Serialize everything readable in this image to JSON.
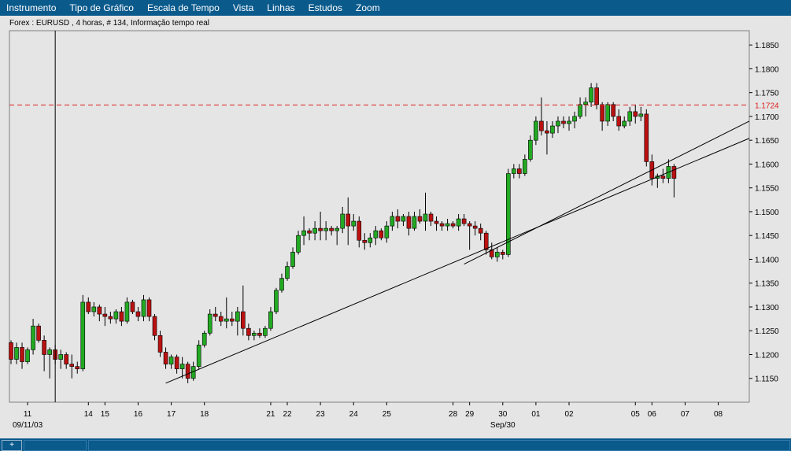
{
  "menu": {
    "items": [
      "Instrumento",
      "Tipo de Gráfico",
      "Escala de Tempo",
      "Vista",
      "Linhas",
      "Estudos",
      "Zoom"
    ]
  },
  "chart_title": "Forex : EURUSD , 4 horas, # 134, Informação tempo real",
  "statusbar": {
    "button_label": "+"
  },
  "colors": {
    "up": "#22aa22",
    "down": "#bb1111",
    "ref_line": "#dd2222",
    "background": "#e5e5e5"
  },
  "chart_data": {
    "type": "candlestick",
    "symbol": "EURUSD",
    "timeframe": "4 horas",
    "ylim": [
      1.11,
      1.188
    ],
    "y_ticks": [
      "1.1150",
      "1.1200",
      "1.1250",
      "1.1300",
      "1.1350",
      "1.1400",
      "1.1450",
      "1.1500",
      "1.1550",
      "1.1600",
      "1.1650",
      "1.1700",
      "1.1750",
      "1.1800",
      "1.1850"
    ],
    "reference_line": {
      "value": 1.1724,
      "label": "1.1724"
    },
    "x_labels": [
      {
        "label": "11",
        "index": 3
      },
      {
        "label": "14",
        "index": 14
      },
      {
        "label": "15",
        "index": 17
      },
      {
        "label": "16",
        "index": 23
      },
      {
        "label": "17",
        "index": 29
      },
      {
        "label": "18",
        "index": 35
      },
      {
        "label": "21",
        "index": 47
      },
      {
        "label": "22",
        "index": 50
      },
      {
        "label": "23",
        "index": 56
      },
      {
        "label": "24",
        "index": 62
      },
      {
        "label": "25",
        "index": 68
      },
      {
        "label": "28",
        "index": 80
      },
      {
        "label": "29",
        "index": 83
      },
      {
        "label": "30",
        "index": 89
      },
      {
        "label": "01",
        "index": 95
      },
      {
        "label": "02",
        "index": 101
      },
      {
        "label": "05",
        "index": 113
      },
      {
        "label": "06",
        "index": 116
      },
      {
        "label": "07",
        "index": 122
      },
      {
        "label": "08",
        "index": 128
      }
    ],
    "x_sublabels": [
      {
        "label": "09/11/03",
        "index": 3
      },
      {
        "label": "Sep/30",
        "index": 89
      }
    ],
    "vertical_marker_index": 8,
    "candles": [
      [
        1.1225,
        1.123,
        1.118,
        1.119
      ],
      [
        1.119,
        1.1225,
        1.118,
        1.1215
      ],
      [
        1.1215,
        1.1225,
        1.117,
        1.1185
      ],
      [
        1.1185,
        1.1215,
        1.118,
        1.121
      ],
      [
        1.121,
        1.1275,
        1.12,
        1.126
      ],
      [
        1.126,
        1.1265,
        1.1225,
        1.123
      ],
      [
        1.123,
        1.124,
        1.1165,
        1.12
      ],
      [
        1.12,
        1.1215,
        1.115,
        1.121
      ],
      [
        1.121,
        1.122,
        1.118,
        1.119
      ],
      [
        1.119,
        1.121,
        1.117,
        1.12
      ],
      [
        1.12,
        1.1205,
        1.117,
        1.118
      ],
      [
        1.118,
        1.12,
        1.115,
        1.1175
      ],
      [
        1.1175,
        1.1185,
        1.116,
        1.117
      ],
      [
        1.117,
        1.1325,
        1.1165,
        1.131
      ],
      [
        1.131,
        1.132,
        1.1285,
        1.129
      ],
      [
        1.129,
        1.131,
        1.128,
        1.13
      ],
      [
        1.13,
        1.1305,
        1.127,
        1.1285
      ],
      [
        1.1285,
        1.13,
        1.126,
        1.128
      ],
      [
        1.128,
        1.129,
        1.1265,
        1.1275
      ],
      [
        1.1275,
        1.1295,
        1.1265,
        1.129
      ],
      [
        1.129,
        1.13,
        1.126,
        1.127
      ],
      [
        1.127,
        1.132,
        1.1265,
        1.131
      ],
      [
        1.131,
        1.1315,
        1.1285,
        1.129
      ],
      [
        1.129,
        1.13,
        1.127,
        1.128
      ],
      [
        1.128,
        1.1325,
        1.127,
        1.1315
      ],
      [
        1.1315,
        1.132,
        1.127,
        1.128
      ],
      [
        1.128,
        1.1285,
        1.123,
        1.124
      ],
      [
        1.124,
        1.125,
        1.1195,
        1.1205
      ],
      [
        1.1205,
        1.1215,
        1.117,
        1.118
      ],
      [
        1.118,
        1.12,
        1.117,
        1.1195
      ],
      [
        1.1195,
        1.12,
        1.116,
        1.117
      ],
      [
        1.117,
        1.1195,
        1.115,
        1.118
      ],
      [
        1.118,
        1.1185,
        1.114,
        1.115
      ],
      [
        1.115,
        1.1185,
        1.1145,
        1.1175
      ],
      [
        1.1175,
        1.123,
        1.117,
        1.122
      ],
      [
        1.122,
        1.125,
        1.1215,
        1.1245
      ],
      [
        1.1245,
        1.1295,
        1.124,
        1.1285
      ],
      [
        1.1285,
        1.13,
        1.127,
        1.128
      ],
      [
        1.128,
        1.129,
        1.126,
        1.127
      ],
      [
        1.127,
        1.132,
        1.1255,
        1.1275
      ],
      [
        1.1275,
        1.129,
        1.126,
        1.127
      ],
      [
        1.127,
        1.13,
        1.124,
        1.129
      ],
      [
        1.129,
        1.1345,
        1.124,
        1.1255
      ],
      [
        1.1255,
        1.1265,
        1.123,
        1.124
      ],
      [
        1.124,
        1.125,
        1.123,
        1.1245
      ],
      [
        1.1245,
        1.1255,
        1.1235,
        1.124
      ],
      [
        1.124,
        1.126,
        1.1235,
        1.1255
      ],
      [
        1.1255,
        1.13,
        1.125,
        1.129
      ],
      [
        1.129,
        1.134,
        1.1285,
        1.1335
      ],
      [
        1.1335,
        1.137,
        1.133,
        1.136
      ],
      [
        1.136,
        1.1395,
        1.1355,
        1.1385
      ],
      [
        1.1385,
        1.1425,
        1.138,
        1.1415
      ],
      [
        1.1415,
        1.146,
        1.141,
        1.145
      ],
      [
        1.145,
        1.149,
        1.143,
        1.146
      ],
      [
        1.146,
        1.1465,
        1.144,
        1.1455
      ],
      [
        1.1455,
        1.148,
        1.144,
        1.1465
      ],
      [
        1.1465,
        1.15,
        1.144,
        1.146
      ],
      [
        1.146,
        1.148,
        1.144,
        1.1465
      ],
      [
        1.1465,
        1.147,
        1.145,
        1.146
      ],
      [
        1.146,
        1.147,
        1.143,
        1.1465
      ],
      [
        1.1465,
        1.151,
        1.1455,
        1.1495
      ],
      [
        1.1495,
        1.153,
        1.143,
        1.147
      ],
      [
        1.147,
        1.1495,
        1.146,
        1.148
      ],
      [
        1.148,
        1.149,
        1.1425,
        1.144
      ],
      [
        1.144,
        1.1455,
        1.142,
        1.1435
      ],
      [
        1.1435,
        1.1455,
        1.1425,
        1.1445
      ],
      [
        1.1445,
        1.147,
        1.143,
        1.146
      ],
      [
        1.146,
        1.1465,
        1.144,
        1.1445
      ],
      [
        1.1445,
        1.148,
        1.1435,
        1.147
      ],
      [
        1.147,
        1.15,
        1.146,
        1.149
      ],
      [
        1.149,
        1.1505,
        1.1465,
        1.148
      ],
      [
        1.148,
        1.1495,
        1.147,
        1.149
      ],
      [
        1.149,
        1.15,
        1.145,
        1.1465
      ],
      [
        1.1465,
        1.15,
        1.146,
        1.149
      ],
      [
        1.149,
        1.1505,
        1.1475,
        1.148
      ],
      [
        1.148,
        1.154,
        1.146,
        1.1495
      ],
      [
        1.1495,
        1.15,
        1.147,
        1.148
      ],
      [
        1.148,
        1.149,
        1.146,
        1.1475
      ],
      [
        1.1475,
        1.148,
        1.146,
        1.147
      ],
      [
        1.147,
        1.1485,
        1.146,
        1.1475
      ],
      [
        1.1475,
        1.148,
        1.1465,
        1.147
      ],
      [
        1.147,
        1.1495,
        1.146,
        1.1485
      ],
      [
        1.1485,
        1.1495,
        1.147,
        1.1475
      ],
      [
        1.1475,
        1.148,
        1.142,
        1.147
      ],
      [
        1.147,
        1.148,
        1.145,
        1.1465
      ],
      [
        1.1465,
        1.1475,
        1.144,
        1.1455
      ],
      [
        1.1455,
        1.146,
        1.141,
        1.142
      ],
      [
        1.142,
        1.1435,
        1.14,
        1.1405
      ],
      [
        1.1405,
        1.1425,
        1.1395,
        1.1415
      ],
      [
        1.1415,
        1.142,
        1.14,
        1.141
      ],
      [
        1.141,
        1.159,
        1.1405,
        1.158
      ],
      [
        1.158,
        1.16,
        1.157,
        1.159
      ],
      [
        1.159,
        1.16,
        1.157,
        1.158
      ],
      [
        1.158,
        1.162,
        1.1575,
        1.161
      ],
      [
        1.161,
        1.166,
        1.1605,
        1.165
      ],
      [
        1.165,
        1.17,
        1.164,
        1.169
      ],
      [
        1.169,
        1.174,
        1.166,
        1.167
      ],
      [
        1.167,
        1.169,
        1.162,
        1.1665
      ],
      [
        1.1665,
        1.169,
        1.1655,
        1.168
      ],
      [
        1.168,
        1.17,
        1.1665,
        1.169
      ],
      [
        1.169,
        1.17,
        1.1675,
        1.1685
      ],
      [
        1.1685,
        1.17,
        1.167,
        1.169
      ],
      [
        1.169,
        1.171,
        1.1675,
        1.17
      ],
      [
        1.17,
        1.174,
        1.1695,
        1.1725
      ],
      [
        1.1725,
        1.174,
        1.17,
        1.173
      ],
      [
        1.173,
        1.177,
        1.172,
        1.176
      ],
      [
        1.176,
        1.177,
        1.1715,
        1.1725
      ],
      [
        1.1725,
        1.173,
        1.167,
        1.169
      ],
      [
        1.169,
        1.173,
        1.168,
        1.1725
      ],
      [
        1.1725,
        1.173,
        1.169,
        1.17
      ],
      [
        1.17,
        1.1715,
        1.167,
        1.168
      ],
      [
        1.168,
        1.17,
        1.1675,
        1.169
      ],
      [
        1.169,
        1.172,
        1.168,
        1.171
      ],
      [
        1.171,
        1.1725,
        1.1685,
        1.17
      ],
      [
        1.17,
        1.172,
        1.169,
        1.1705
      ],
      [
        1.1705,
        1.1715,
        1.1595,
        1.1605
      ],
      [
        1.1605,
        1.162,
        1.1555,
        1.157
      ],
      [
        1.157,
        1.158,
        1.155,
        1.1575
      ],
      [
        1.1575,
        1.159,
        1.156,
        1.157
      ],
      [
        1.157,
        1.161,
        1.156,
        1.1595
      ],
      [
        1.1595,
        1.16,
        1.153,
        1.157
      ]
    ]
  }
}
